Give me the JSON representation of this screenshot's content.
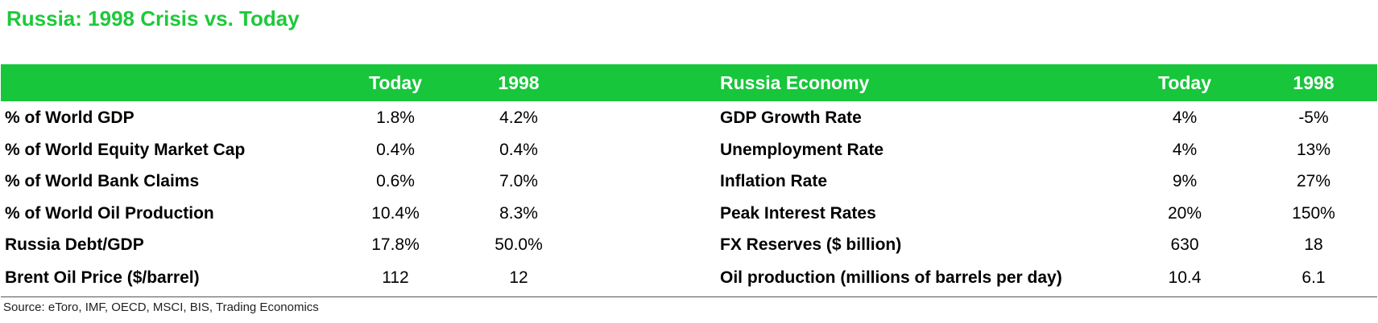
{
  "title": "Russia: 1998 Crisis vs. Today",
  "colors": {
    "title": "#1ec93a",
    "header_bg": "#17c63b",
    "header_text": "#ffffff"
  },
  "chart_data": {
    "type": "table",
    "tables": [
      {
        "columns": [
          "",
          "Today",
          "1998"
        ],
        "rows": [
          [
            "% of World GDP",
            "1.8%",
            "4.2%"
          ],
          [
            "% of World Equity Market Cap",
            "0.4%",
            "0.4%"
          ],
          [
            "% of World Bank Claims",
            "0.6%",
            "7.0%"
          ],
          [
            "% of World Oil Production",
            "10.4%",
            "8.3%"
          ],
          [
            "Russia Debt/GDP",
            "17.8%",
            "50.0%"
          ],
          [
            "Brent Oil Price ($/barrel)",
            "112",
            "12"
          ]
        ]
      },
      {
        "columns": [
          "Russia Economy",
          "Today",
          "1998"
        ],
        "rows": [
          [
            "GDP Growth Rate",
            "4%",
            "-5%"
          ],
          [
            "Unemployment Rate",
            "4%",
            "13%"
          ],
          [
            "Inflation Rate",
            "9%",
            "27%"
          ],
          [
            "Peak Interest Rates",
            "20%",
            "150%"
          ],
          [
            "FX Reserves ($ billion)",
            "630",
            "18"
          ],
          [
            "Oil production (millions of barrels per day)",
            "10.4",
            "6.1"
          ]
        ]
      }
    ]
  },
  "source": "Source: eToro, IMF, OECD, MSCI, BIS, Trading Economics"
}
